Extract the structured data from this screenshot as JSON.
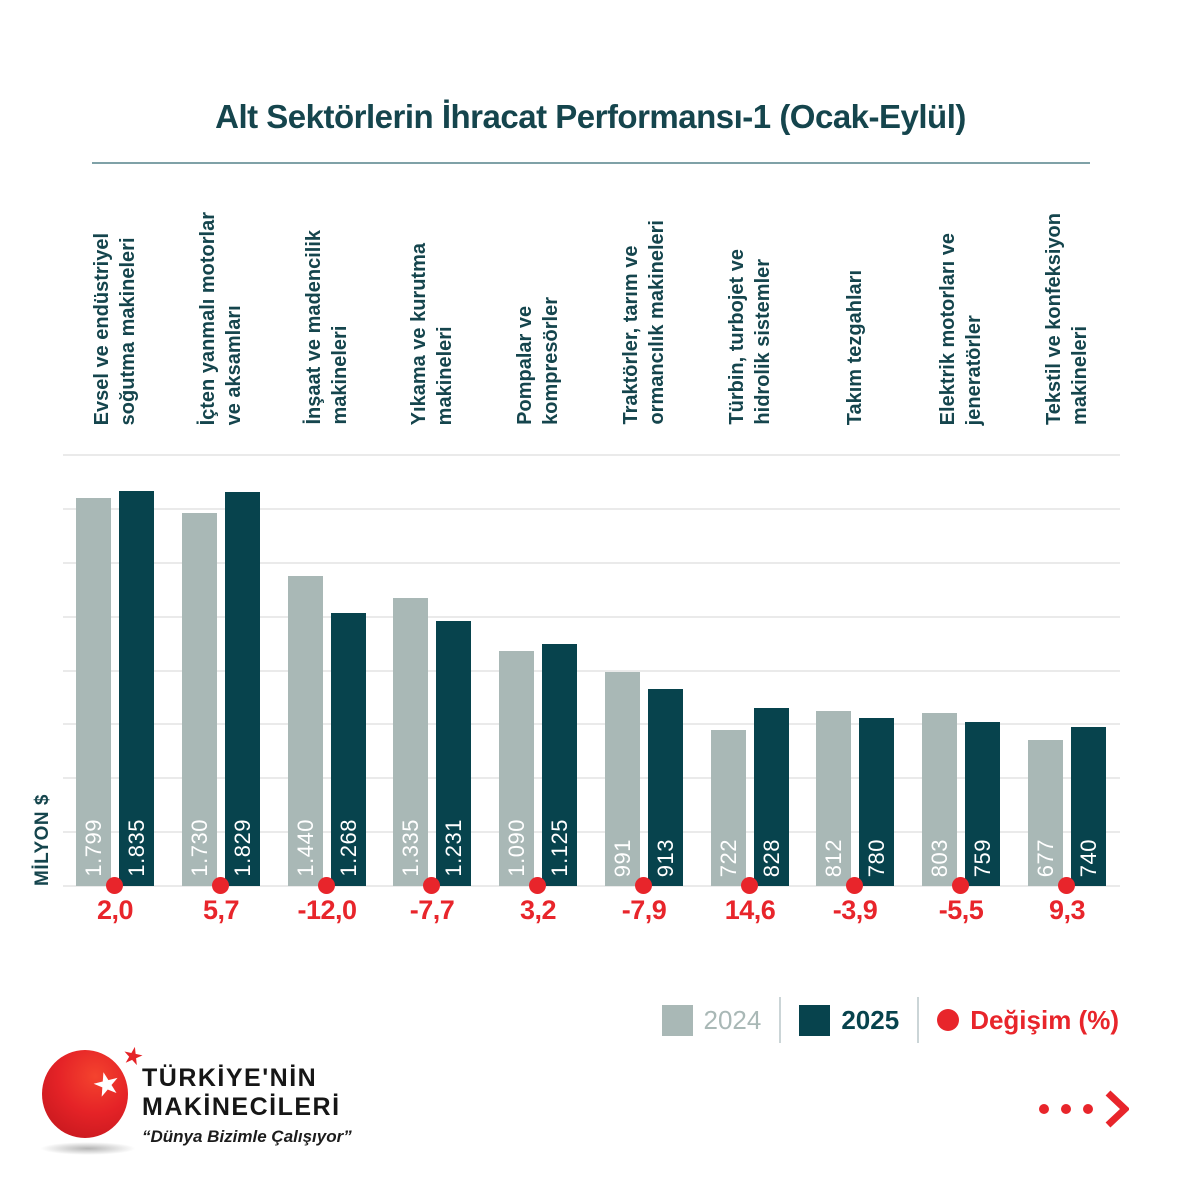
{
  "title": "Alt Sektörlerin İhracat Performansı-1 (Ocak-Eylül)",
  "chart_data": {
    "type": "bar",
    "title": "Alt Sektörlerin İhracat Performansı-1 (Ocak-Eylül)",
    "xlabel": "",
    "ylabel": "MİLYON $",
    "ylim": [
      0,
      2000
    ],
    "grid_step": 250,
    "grid": "horizontal",
    "legend_position": "bottom-right",
    "categories": [
      "Evsel ve endüstriyel\nsoğutma makineleri",
      "İçten yanmalı motorlar\nve aksamları",
      "İnşaat ve madencilik\nmakineleri",
      "Yıkama ve kurutma\nmakineleri",
      "Pompalar ve\nkompresörler",
      "Traktörler, tarım ve\normancılık makineleri",
      "Türbin, turbojet ve\nhidrolik sistemler",
      "Takım tezgahları",
      "Elektrik motorları ve\njeneratörler",
      "Tekstil ve konfeksiyon\nmakineleri"
    ],
    "series": [
      {
        "name": "2024",
        "color": "#A9B8B6",
        "values": [
          1799,
          1730,
          1440,
          1335,
          1090,
          991,
          722,
          812,
          803,
          677
        ],
        "labels": [
          "1.799",
          "1.730",
          "1.440",
          "1.335",
          "1.090",
          "991",
          "722",
          "812",
          "803",
          "677"
        ]
      },
      {
        "name": "2025",
        "color": "#07434D",
        "values": [
          1835,
          1829,
          1268,
          1231,
          1125,
          913,
          828,
          780,
          759,
          740
        ],
        "labels": [
          "1.835",
          "1.829",
          "1.268",
          "1.231",
          "1.125",
          "913",
          "828",
          "780",
          "759",
          "740"
        ]
      }
    ],
    "change_series": {
      "name": "Değişim (%)",
      "color": "#E8252B",
      "values": [
        "2,0",
        "5,7",
        "-12,0",
        "-7,7",
        "3,2",
        "-7,9",
        "14,6",
        "-3,9",
        "-5,5",
        "9,3"
      ]
    }
  },
  "colors": {
    "teal_text": "#15454D",
    "bar_2024": "#A9B8B6",
    "bar_2025": "#07434D",
    "accent_red": "#E8252B",
    "gridline": "#EAEAEA",
    "title_divider": "#7FA1A7"
  },
  "logo": {
    "line1": "TÜRKİYE'NİN",
    "line2": "MAKİNECİLERİ",
    "tagline": "“Dünya Bizimle Çalışıyor”",
    "star_icon": "star"
  }
}
